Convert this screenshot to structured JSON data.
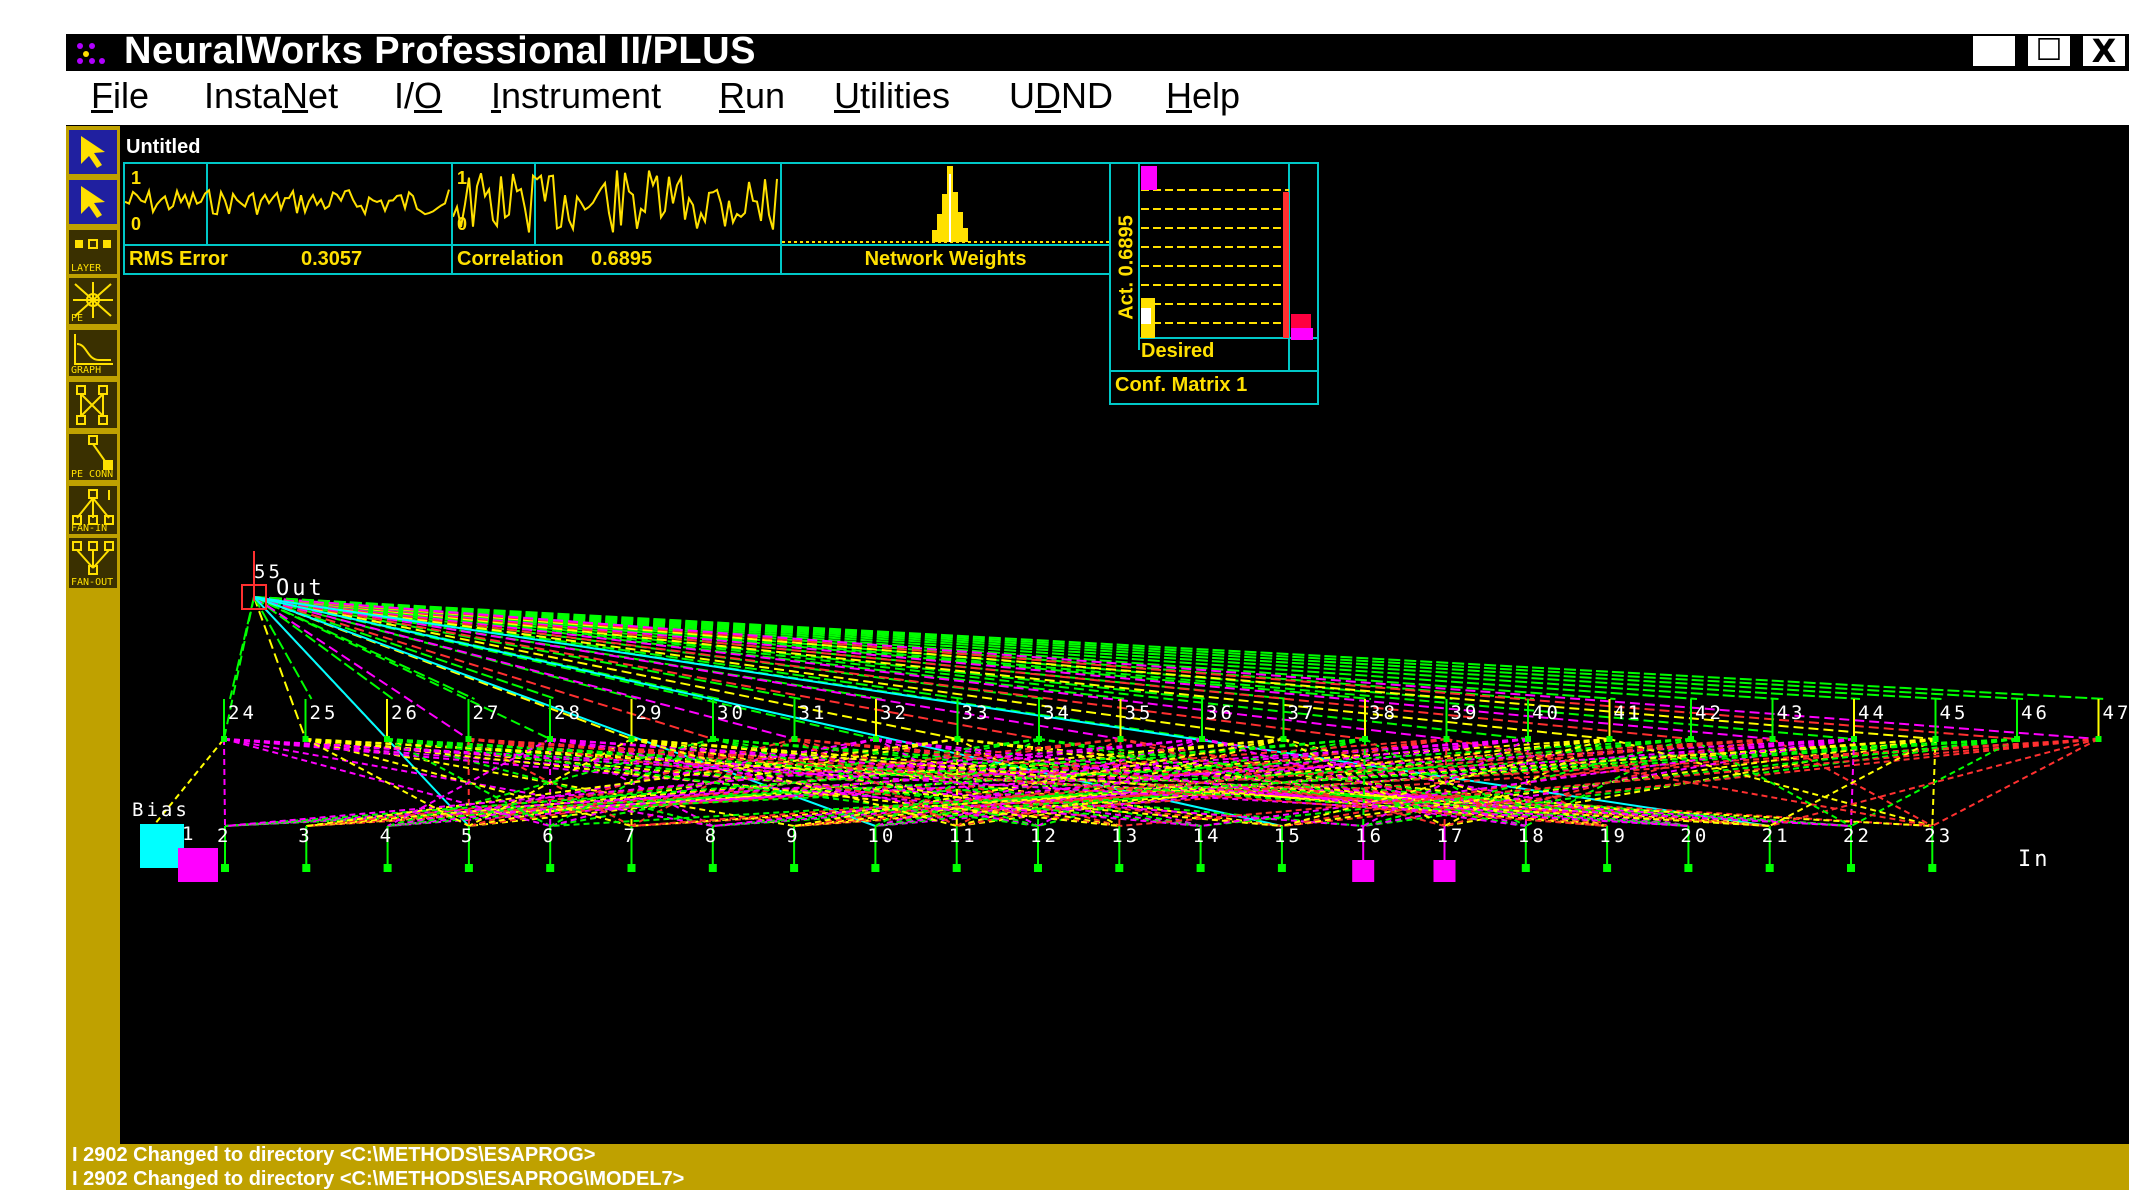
{
  "window": {
    "title": "NeuralWorks Professional II/PLUS",
    "buttons": {
      "minimize": "_",
      "maximize": "☐",
      "close": "X"
    }
  },
  "menu": [
    {
      "label": "File",
      "mnemonic_index": 0
    },
    {
      "label": "InstaNet",
      "mnemonic_index": 5
    },
    {
      "label": "I/O",
      "mnemonic_index": 2
    },
    {
      "label": "Instrument",
      "mnemonic_index": 0
    },
    {
      "label": "Run",
      "mnemonic_index": 0
    },
    {
      "label": "Utilities",
      "mnemonic_index": 0
    },
    {
      "label": "UDND",
      "mnemonic_index": 1
    },
    {
      "label": "Help",
      "mnemonic_index": 0
    }
  ],
  "toolbar": {
    "tools": [
      {
        "icon": "arrow-select-icon",
        "label": ""
      },
      {
        "icon": "arrow-select-icon",
        "label": ""
      },
      {
        "icon": "layer-icon",
        "label": "LAYER"
      },
      {
        "icon": "pe-icon",
        "label": "PE"
      },
      {
        "icon": "graph-icon",
        "label": "GRAPH"
      },
      {
        "icon": "network-icon",
        "label": ""
      },
      {
        "icon": "pe-connect-icon",
        "label": "PE CONN"
      },
      {
        "icon": "fan-in-icon",
        "label": "FAN-IN"
      },
      {
        "icon": "fan-out-icon",
        "label": "FAN-OUT"
      }
    ]
  },
  "document": {
    "title": "Untitled"
  },
  "instruments": {
    "rms": {
      "label": "RMS Error",
      "value": "0.3057",
      "tick_top": "1",
      "tick_bottom": "0"
    },
    "correlation": {
      "label": "Correlation",
      "value": "0.6895",
      "tick_top": "1",
      "tick_bottom": "0"
    },
    "weights": {
      "label": "Network Weights"
    },
    "confusion": {
      "y_label": "Act. 0.6895",
      "x_label": "Desired",
      "title": "Conf. Matrix 1"
    }
  },
  "network": {
    "output_pe": "55",
    "output_label": "Out",
    "bias_label": "Bias",
    "input_label": "In",
    "hidden_pe_numbers": [
      "24",
      "25",
      "26",
      "27",
      "28",
      "29",
      "30",
      "31",
      "32",
      "33",
      "34",
      "35",
      "36",
      "37",
      "38",
      "39",
      "40",
      "41",
      "42",
      "43",
      "44",
      "45",
      "46",
      "47"
    ],
    "input_pe_numbers": [
      "2",
      "3",
      "4",
      "5",
      "6",
      "7",
      "8",
      "9",
      "10",
      "11",
      "12",
      "13",
      "14",
      "15",
      "16",
      "17",
      "18",
      "19",
      "20",
      "21",
      "22",
      "23"
    ],
    "bias_pe_number": "1",
    "colors": {
      "green": "#00ff00",
      "magenta": "#ff00ff",
      "yellow": "#ffff00",
      "cyan": "#00ffff",
      "red": "#ff3030"
    }
  },
  "status": {
    "lines": [
      "I 2902 Changed to directory <C:\\METHODS\\ESAPROG>",
      "I 2902 Changed to directory <C:\\METHODS\\ESAPROG\\MODEL7>"
    ]
  }
}
